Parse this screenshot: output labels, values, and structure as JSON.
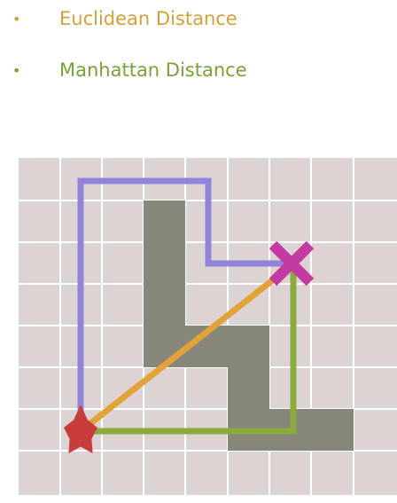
{
  "legend": {
    "items": [
      {
        "bullet": "•",
        "label": "Euclidean Distance",
        "color": "#d6a03c"
      },
      {
        "bullet": "•",
        "label": "Manhattan Distance",
        "color": "#7aa23a"
      }
    ]
  },
  "diagram": {
    "colors": {
      "grid_fill": "#ddd3d3",
      "grid_line": "#ffffff",
      "obstacle": "#86867a",
      "path_purple": "#9184d8",
      "path_orange": "#e2a23a",
      "path_green": "#8aab3c",
      "start": "#c83c3c",
      "goal": "#c23aa2"
    }
  }
}
